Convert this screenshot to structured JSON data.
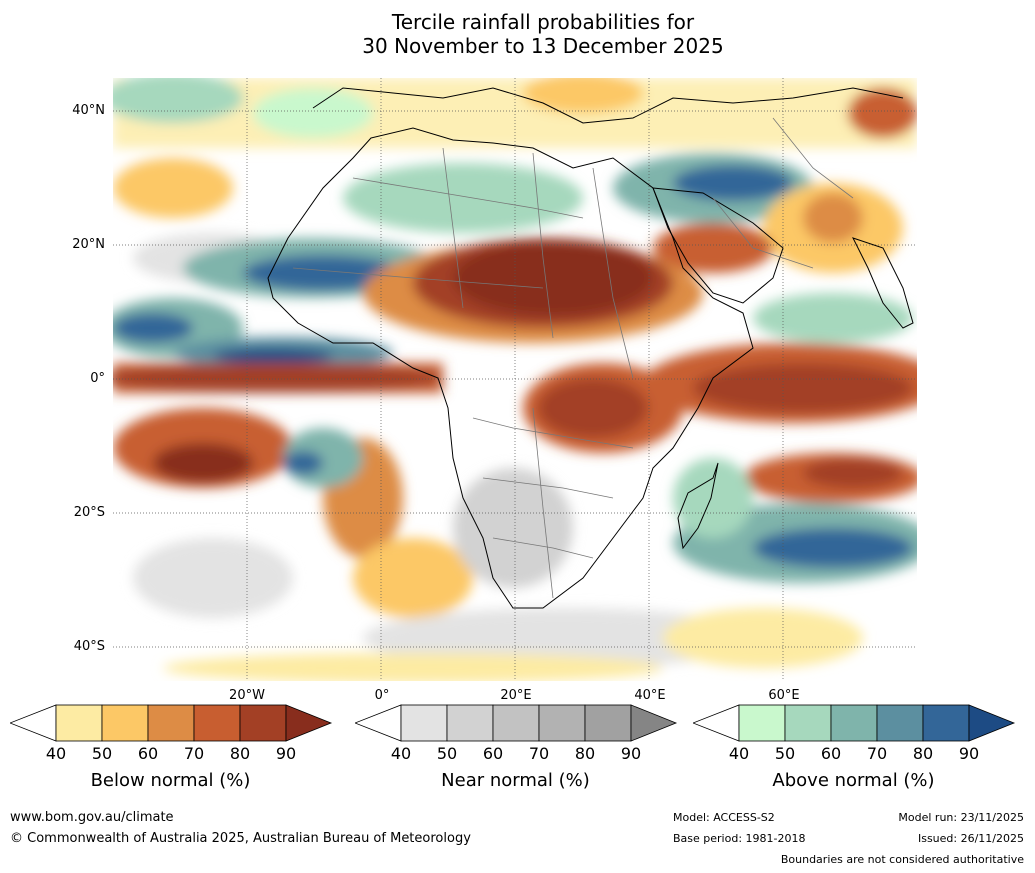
{
  "title": {
    "line1": "Tercile rainfall probabilities for",
    "line2": "30 November to 13 December 2025"
  },
  "map": {
    "lat_labels": [
      "40°N",
      "20°N",
      "0°",
      "20°S",
      "40°S"
    ],
    "lon_labels": [
      "20°W",
      "0°",
      "20°E",
      "40°E",
      "60°E"
    ]
  },
  "legends": [
    {
      "title": "Below normal (%)",
      "ticks": [
        "40",
        "50",
        "60",
        "70",
        "80",
        "90"
      ],
      "colors": [
        "#ffffff",
        "#fdeba3",
        "#fcc866",
        "#dd8c45",
        "#c85e30",
        "#a34025",
        "#882d1d"
      ]
    },
    {
      "title": "Near normal (%)",
      "ticks": [
        "40",
        "50",
        "60",
        "70",
        "80",
        "90"
      ],
      "colors": [
        "#ffffff",
        "#e3e3e3",
        "#d2d2d2",
        "#c2c2c2",
        "#b2b2b2",
        "#a1a1a1",
        "#858585"
      ]
    },
    {
      "title": "Above normal (%)",
      "ticks": [
        "40",
        "50",
        "60",
        "70",
        "80",
        "90"
      ],
      "colors": [
        "#ffffff",
        "#c9f8cd",
        "#a6d8bd",
        "#7fb4ab",
        "#5c8fa0",
        "#336698",
        "#1d4b84"
      ]
    }
  ],
  "footer": {
    "website": "www.bom.gov.au/climate",
    "copyright": "© Commonwealth of Australia 2025, Australian Bureau of Meteorology",
    "model": "Model: ACCESS-S2",
    "base_period": "Base period: 1981-2018",
    "model_run": "Model run: 23/11/2025",
    "issued": "Issued: 26/11/2025",
    "disclaimer": "Boundaries are not considered authoritative"
  }
}
